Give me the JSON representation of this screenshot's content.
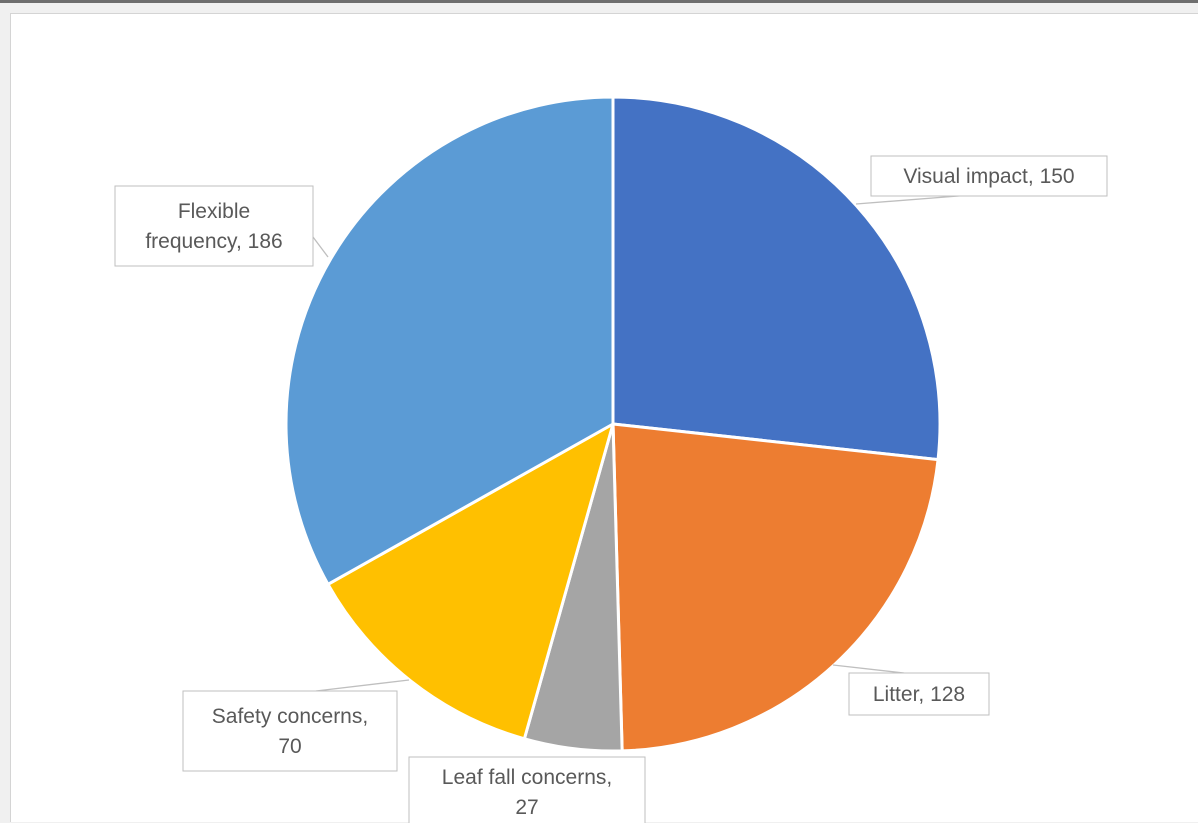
{
  "chart_data": {
    "type": "pie",
    "title": "",
    "categories": [
      "Visual impact",
      "Litter",
      "Leaf fall concerns",
      "Safety concerns",
      "Flexible frequency"
    ],
    "values": [
      150,
      128,
      27,
      70,
      186
    ],
    "colors": [
      "#4472C4",
      "#ED7D31",
      "#A5A5A5",
      "#FFC000",
      "#5B9BD5"
    ],
    "data_labels": [
      {
        "lines": [
          "Visual impact, 150"
        ]
      },
      {
        "lines": [
          "Litter, 128"
        ]
      },
      {
        "lines": [
          "Leaf fall concerns,",
          "27"
        ]
      },
      {
        "lines": [
          "Safety concerns,",
          "70"
        ]
      },
      {
        "lines": [
          "Flexible",
          "frequency, 186"
        ]
      }
    ],
    "start_angle": "12 o'clock",
    "direction": "clockwise",
    "legend": "none"
  }
}
